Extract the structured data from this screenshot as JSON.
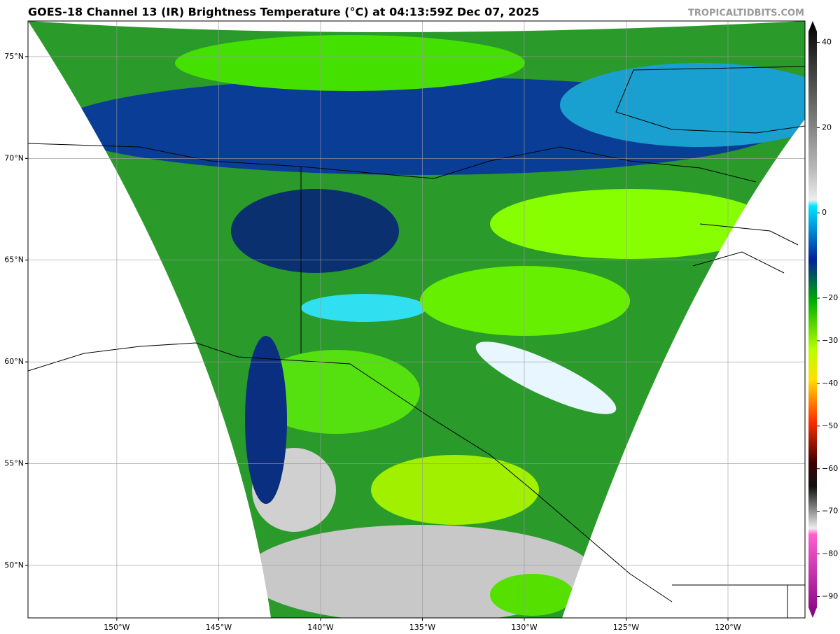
{
  "map": {
    "title": "GOES-18 Channel 13 (IR) Brightness Temperature (°C) at 04:13:59Z Dec 07, 2025",
    "credit": "TROPICALTIDBITS.COM",
    "lonlim": [
      -154.36,
      -116.22
    ],
    "latlim": [
      47.42,
      76.75
    ],
    "lat_ticks": [
      {
        "value": 75,
        "label": "75°N"
      },
      {
        "value": 70,
        "label": "70°N"
      },
      {
        "value": 65,
        "label": "65°N"
      },
      {
        "value": 60,
        "label": "60°N"
      },
      {
        "value": 55,
        "label": "55°N"
      },
      {
        "value": 50,
        "label": "50°N"
      }
    ],
    "lon_ticks": [
      {
        "value": -150,
        "label": "150°W"
      },
      {
        "value": -145,
        "label": "145°W"
      },
      {
        "value": -140,
        "label": "140°W"
      },
      {
        "value": -135,
        "label": "135°W"
      },
      {
        "value": -130,
        "label": "130°W"
      },
      {
        "value": -125,
        "label": "125°W"
      },
      {
        "value": -120,
        "label": "120°W"
      }
    ],
    "colorbar": {
      "lim": [
        -95,
        45
      ],
      "ticks": [
        40,
        20,
        0,
        {
          "value": -20,
          "label": "−20"
        },
        {
          "value": -30,
          "label": "−30"
        },
        {
          "value": -40,
          "label": "−40"
        },
        {
          "value": -50,
          "label": "−50"
        },
        {
          "value": -60,
          "label": "−60"
        },
        {
          "value": -70,
          "label": "−70"
        },
        {
          "value": -80,
          "label": "−80"
        },
        {
          "value": -90,
          "label": "−90"
        }
      ]
    }
  }
}
